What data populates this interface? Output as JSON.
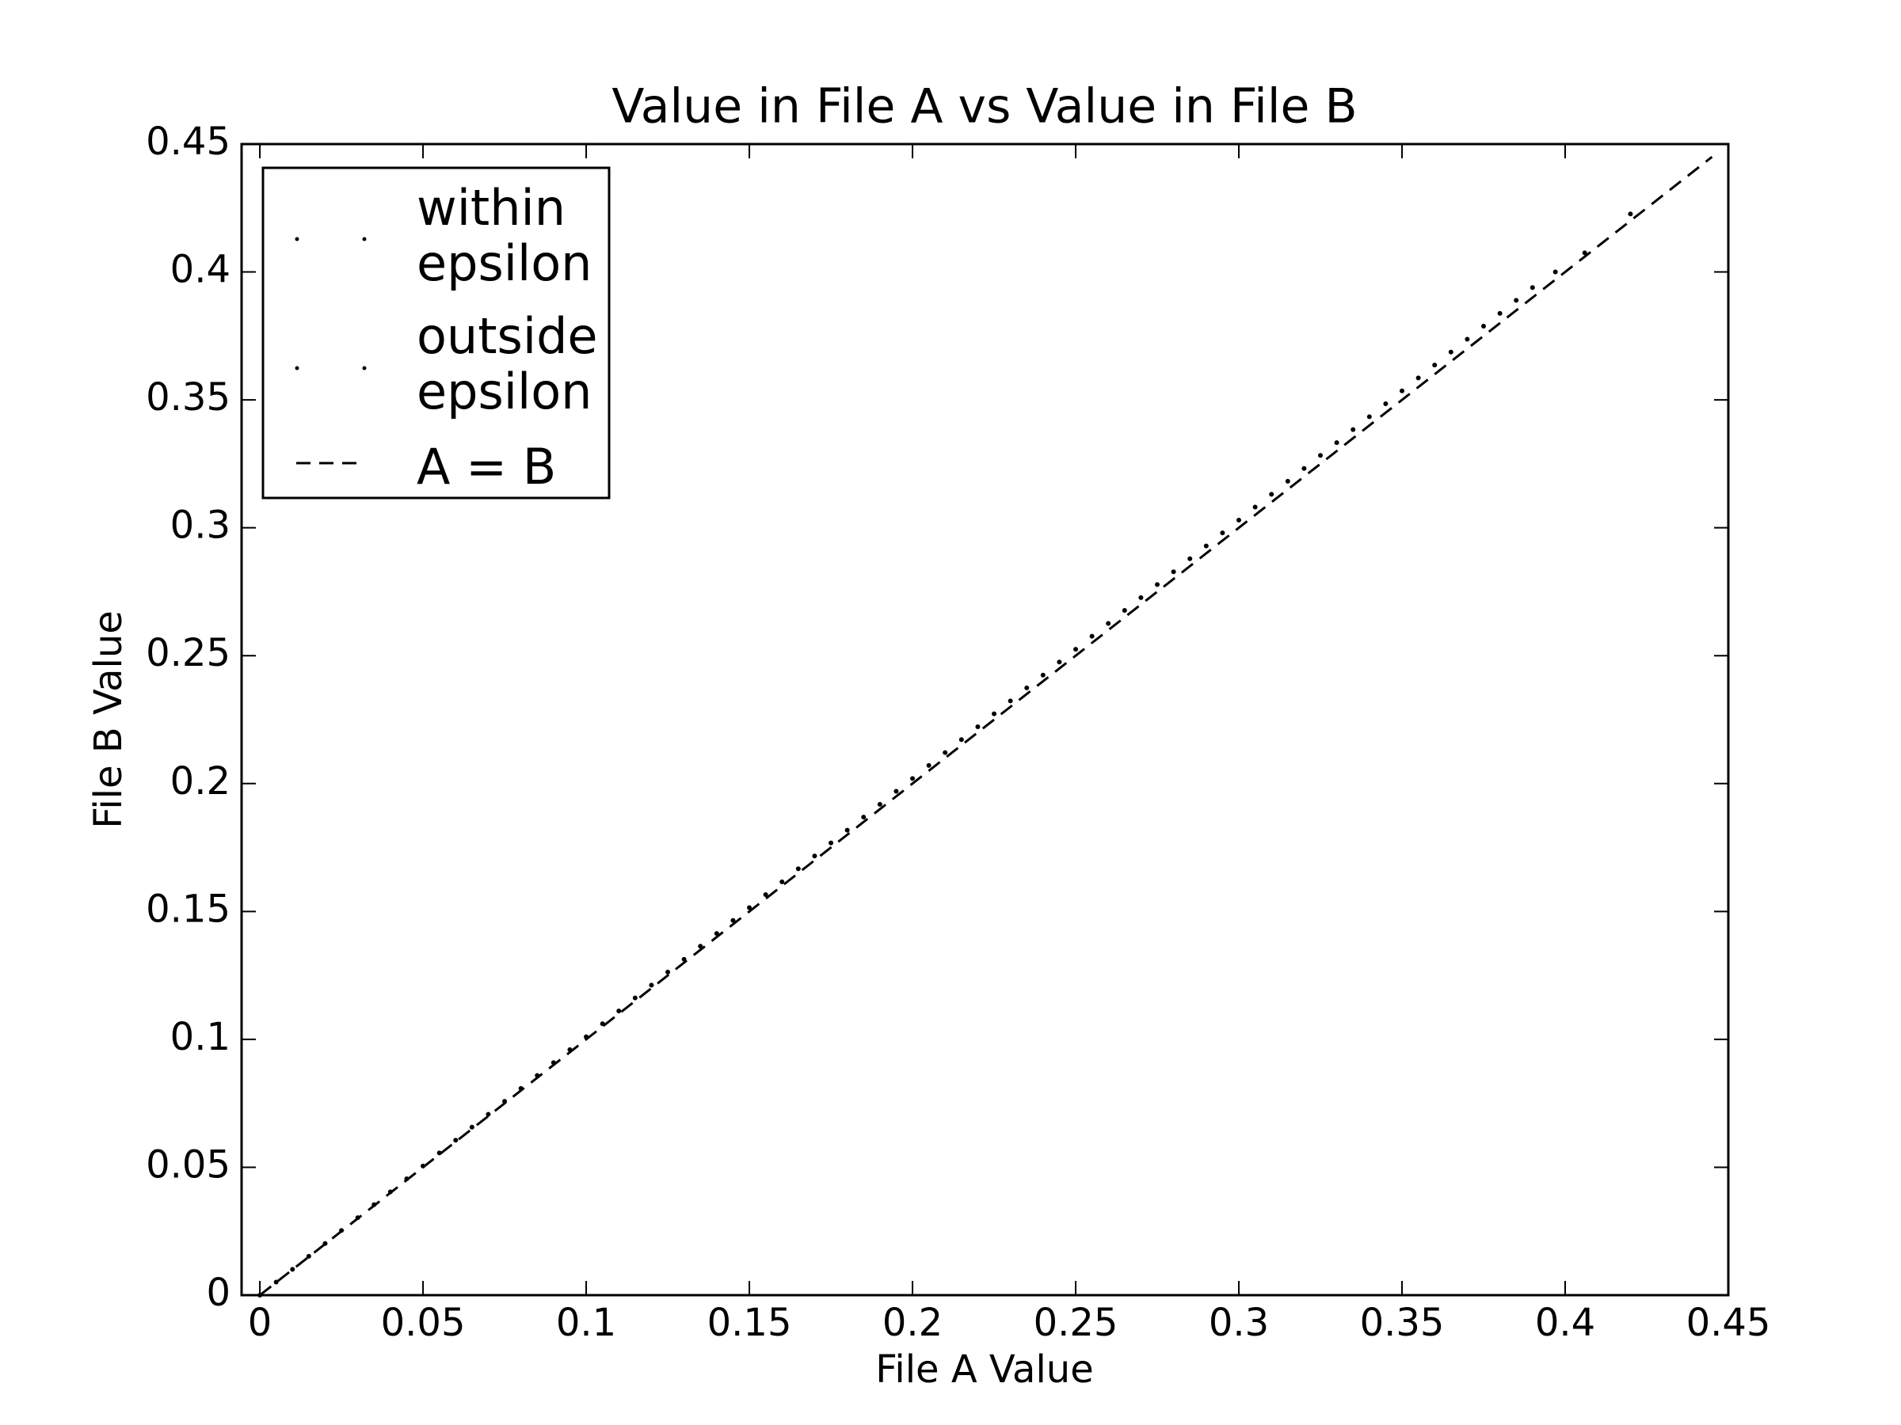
{
  "chart_data": {
    "type": "scatter",
    "title": "Value in File A vs Value in File B",
    "x_label": "File A Value",
    "y_label": "File B Value",
    "xlim": [
      -0.0056,
      0.45
    ],
    "ylim": [
      0,
      0.45
    ],
    "xticks": [
      0,
      0.05,
      0.1,
      0.15,
      0.2,
      0.25,
      0.3,
      0.35,
      0.4,
      0.45
    ],
    "yticks": [
      0,
      0.05,
      0.1,
      0.15,
      0.2,
      0.25,
      0.3,
      0.35,
      0.4,
      0.45
    ],
    "legend": "upper left",
    "series": [
      {
        "name": "within epsilon",
        "color": "#000000",
        "style": "points",
        "x": [
          0,
          0.005,
          0.01,
          0.015,
          0.02,
          0.025,
          0.03,
          0.035,
          0.04,
          0.045,
          0.05,
          0.055,
          0.06,
          0.065,
          0.07,
          0.075,
          0.08,
          0.085,
          0.09,
          0.095,
          0.1,
          0.105,
          0.11,
          0.115,
          0.12,
          0.125,
          0.13,
          0.135,
          0.14,
          0.145,
          0.15,
          0.155,
          0.16,
          0.165,
          0.17,
          0.175,
          0.18,
          0.185,
          0.19,
          0.195,
          0.2,
          0.205,
          0.21,
          0.215,
          0.22,
          0.225,
          0.23,
          0.235,
          0.24,
          0.245,
          0.25,
          0.255,
          0.26,
          0.265,
          0.27,
          0.275,
          0.28,
          0.285,
          0.29,
          0.295,
          0.3,
          0.305,
          0.31,
          0.315,
          0.32,
          0.325,
          0.33,
          0.335,
          0.34,
          0.345,
          0.35,
          0.355,
          0.36,
          0.365,
          0.37,
          0.375,
          0.38,
          0.385,
          0.39
        ],
        "values": [
          0,
          0.0051,
          0.0101,
          0.0152,
          0.0202,
          0.0253,
          0.0303,
          0.0354,
          0.0404,
          0.0455,
          0.0505,
          0.0556,
          0.0606,
          0.0657,
          0.0707,
          0.0758,
          0.0808,
          0.0859,
          0.0909,
          0.096,
          0.101,
          0.1061,
          0.1111,
          0.1162,
          0.1212,
          0.1263,
          0.1313,
          0.1364,
          0.1414,
          0.1465,
          0.1515,
          0.1566,
          0.1616,
          0.1667,
          0.1717,
          0.1768,
          0.1818,
          0.1869,
          0.1919,
          0.197,
          0.202,
          0.2071,
          0.2121,
          0.2172,
          0.2222,
          0.2273,
          0.2323,
          0.2374,
          0.2424,
          0.2475,
          0.2525,
          0.2576,
          0.2626,
          0.2677,
          0.2727,
          0.2778,
          0.2828,
          0.2879,
          0.2929,
          0.298,
          0.303,
          0.3081,
          0.3131,
          0.3182,
          0.3232,
          0.3283,
          0.3333,
          0.3384,
          0.3434,
          0.3485,
          0.3535,
          0.3586,
          0.3636,
          0.3687,
          0.3737,
          0.3788,
          0.3838,
          0.3889,
          0.3939
        ]
      },
      {
        "name": "outside epsilon",
        "color": "#000000",
        "style": "points",
        "x": [
          0.397,
          0.406,
          0.42
        ],
        "values": [
          0.4,
          0.4075,
          0.4227
        ]
      },
      {
        "name": "A = B",
        "color": "#000000",
        "style": "dashed",
        "x": [
          0,
          0.445
        ],
        "values": [
          0,
          0.445
        ]
      }
    ]
  }
}
